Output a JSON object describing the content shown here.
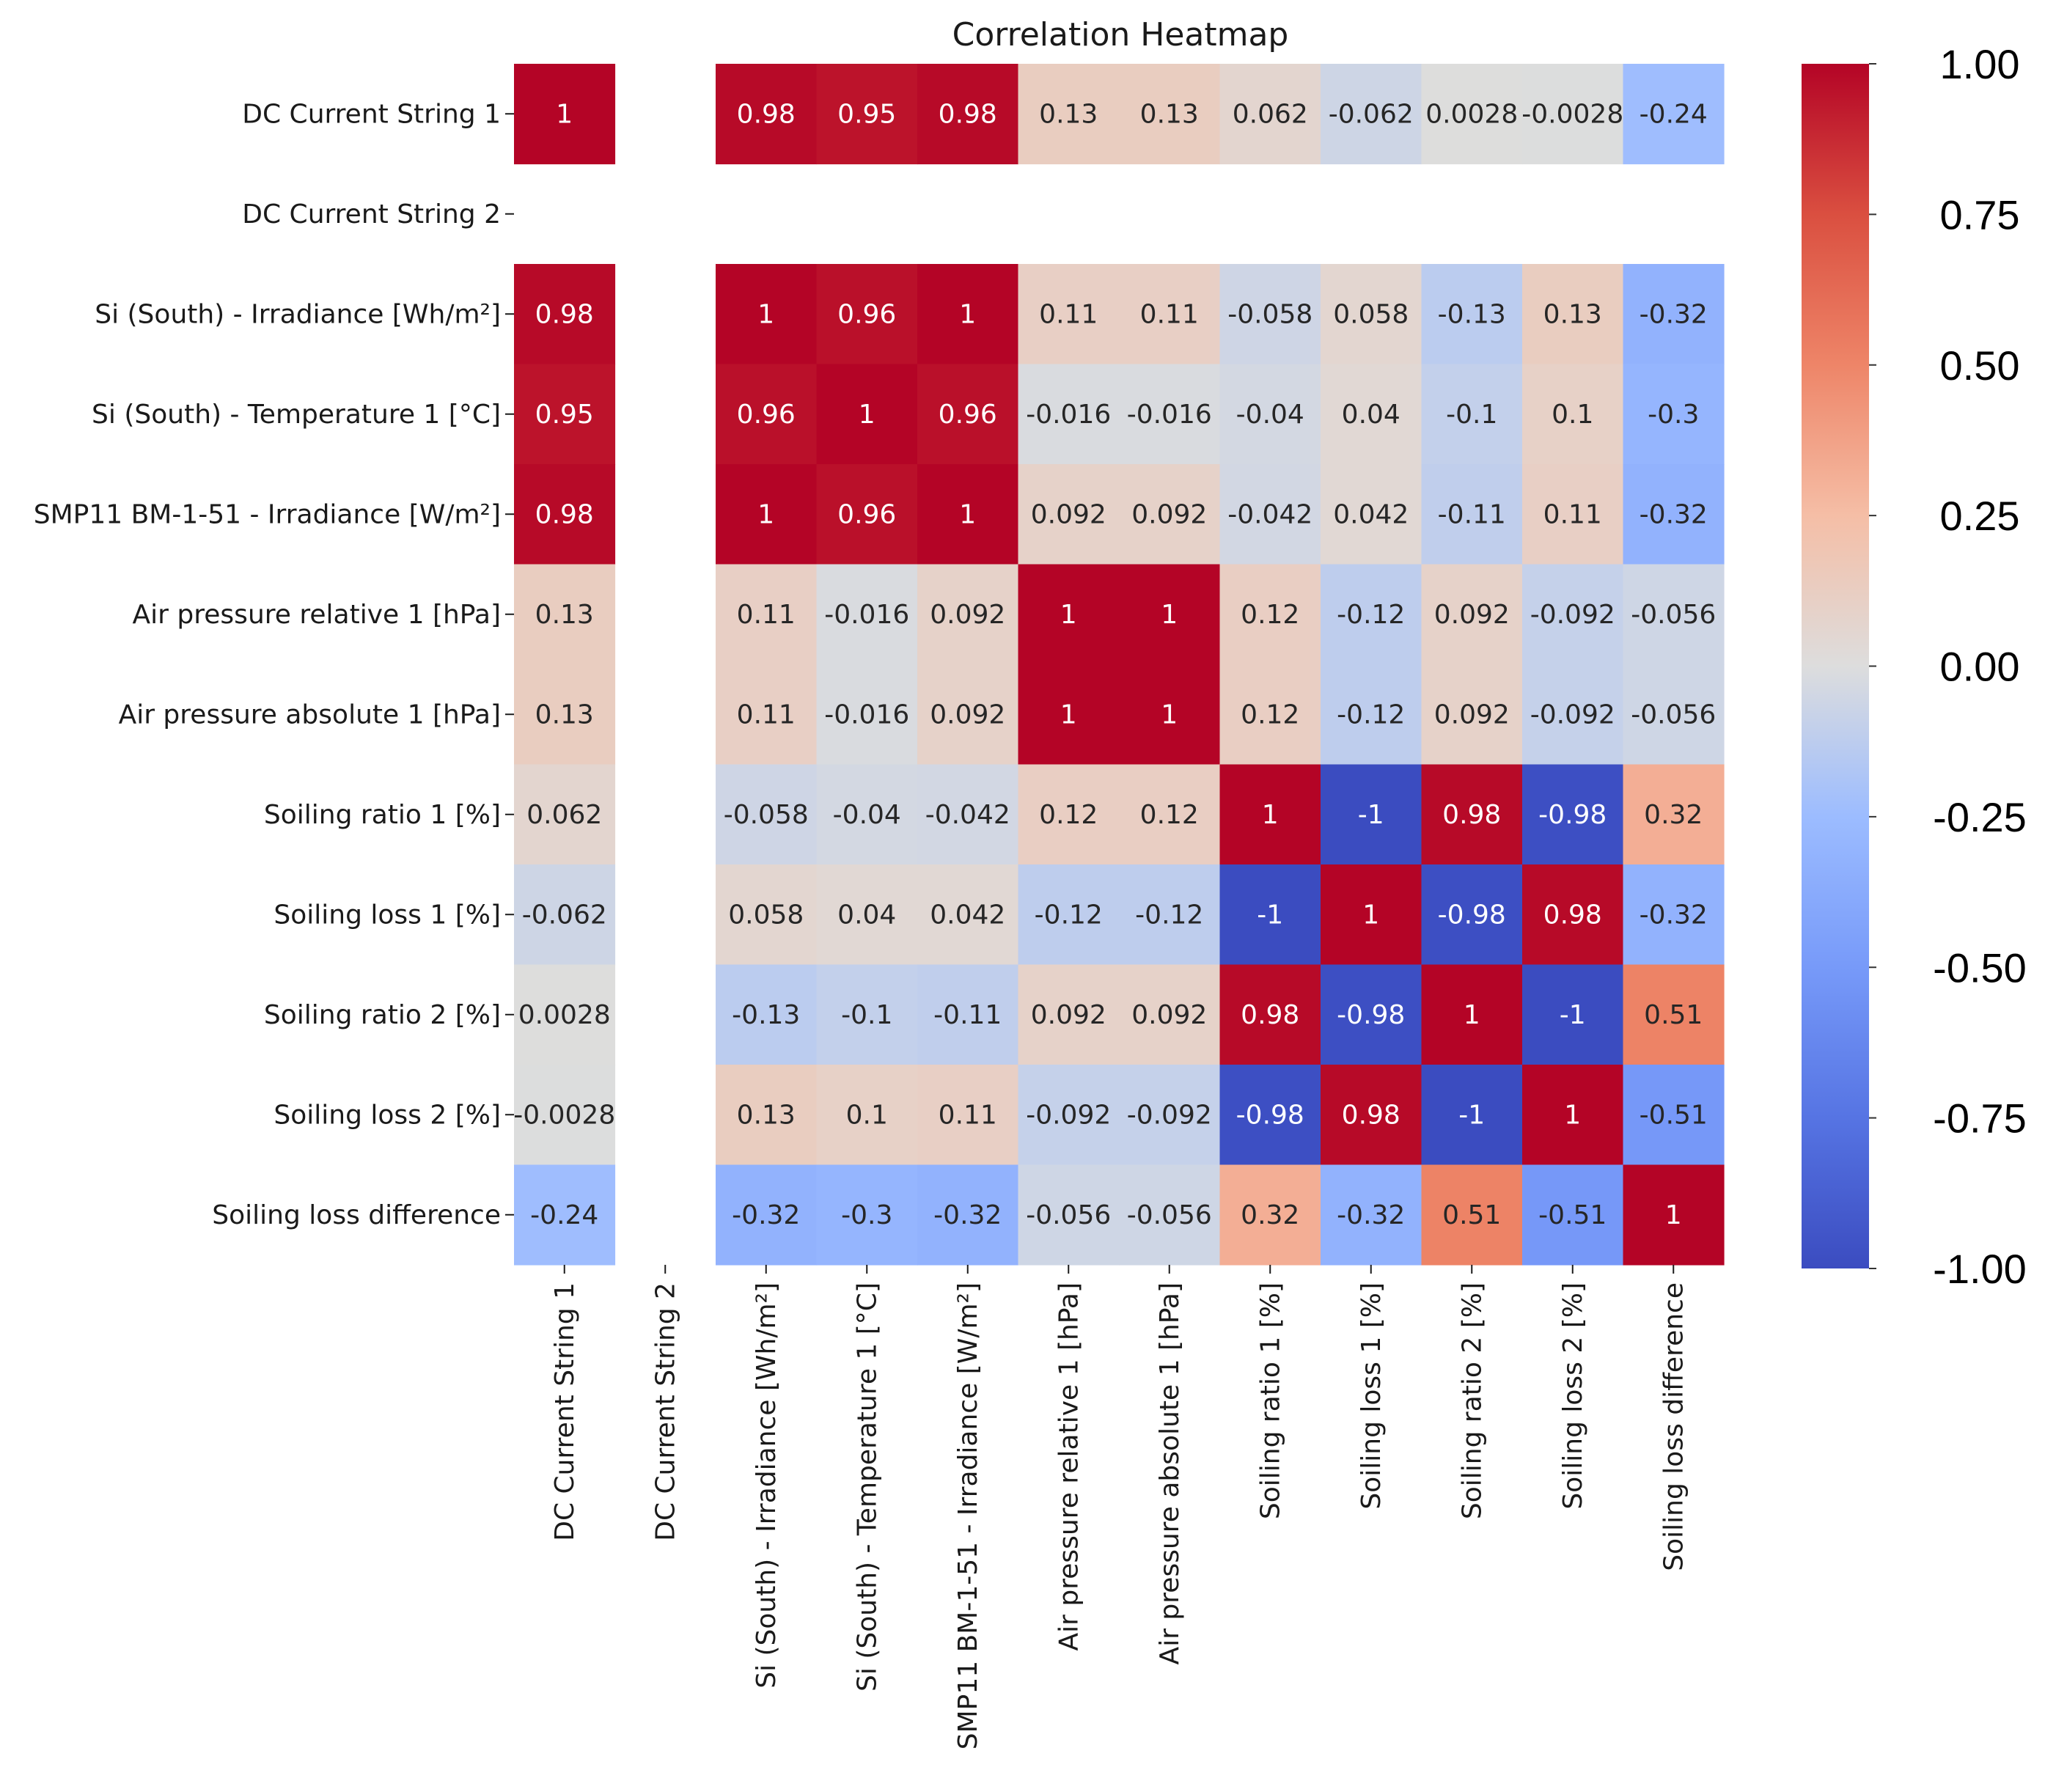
{
  "chart_data": {
    "type": "heatmap",
    "title": "Correlation Heatmap",
    "labels": [
      "DC Current String 1",
      "DC Current String 2",
      "Si (South) - Irradiance [Wh/m²]",
      "Si (South) - Temperature 1 [°C]",
      "SMP11 BM-1-51 - Irradiance [W/m²]",
      "Air pressure relative 1 [hPa]",
      "Air pressure absolute 1 [hPa]",
      "Soiling ratio 1 [%]",
      "Soiling loss 1 [%]",
      "Soiling ratio 2 [%]",
      "Soiling loss 2 [%]",
      "Soiling loss difference"
    ],
    "values": [
      [
        1,
        null,
        0.98,
        0.95,
        0.98,
        0.13,
        0.13,
        0.062,
        -0.062,
        0.0028,
        -0.0028,
        -0.24
      ],
      [
        null,
        null,
        null,
        null,
        null,
        null,
        null,
        null,
        null,
        null,
        null,
        null
      ],
      [
        0.98,
        null,
        1,
        0.96,
        1,
        0.11,
        0.11,
        -0.058,
        0.058,
        -0.13,
        0.13,
        -0.32
      ],
      [
        0.95,
        null,
        0.96,
        1,
        0.96,
        -0.016,
        -0.016,
        -0.04,
        0.04,
        -0.1,
        0.1,
        -0.3
      ],
      [
        0.98,
        null,
        1,
        0.96,
        1,
        0.092,
        0.092,
        -0.042,
        0.042,
        -0.11,
        0.11,
        -0.32
      ],
      [
        0.13,
        null,
        0.11,
        -0.016,
        0.092,
        1,
        1,
        0.12,
        -0.12,
        0.092,
        -0.092,
        -0.056
      ],
      [
        0.13,
        null,
        0.11,
        -0.016,
        0.092,
        1,
        1,
        0.12,
        -0.12,
        0.092,
        -0.092,
        -0.056
      ],
      [
        0.062,
        null,
        -0.058,
        -0.04,
        -0.042,
        0.12,
        0.12,
        1,
        -1,
        0.98,
        -0.98,
        0.32
      ],
      [
        -0.062,
        null,
        0.058,
        0.04,
        0.042,
        -0.12,
        -0.12,
        -1,
        1,
        -0.98,
        0.98,
        -0.32
      ],
      [
        0.0028,
        null,
        -0.13,
        -0.1,
        -0.11,
        0.092,
        0.092,
        0.98,
        -0.98,
        1,
        -1,
        0.51
      ],
      [
        -0.0028,
        null,
        0.13,
        0.1,
        0.11,
        -0.092,
        -0.092,
        -0.98,
        0.98,
        -1,
        1,
        -0.51
      ],
      [
        -0.24,
        null,
        -0.32,
        -0.3,
        -0.32,
        -0.056,
        -0.056,
        0.32,
        -0.32,
        0.51,
        -0.51,
        1
      ]
    ],
    "colormap": "coolwarm",
    "vmin": -1,
    "vmax": 1,
    "colorbar_ticks": [
      "1.00",
      "0.75",
      "0.50",
      "0.25",
      "0.00",
      "-0.25",
      "-0.50",
      "-0.75",
      "-1.00"
    ],
    "colorbar_tick_values": [
      1,
      0.75,
      0.5,
      0.25,
      0,
      -0.25,
      -0.5,
      -0.75,
      -1
    ]
  }
}
